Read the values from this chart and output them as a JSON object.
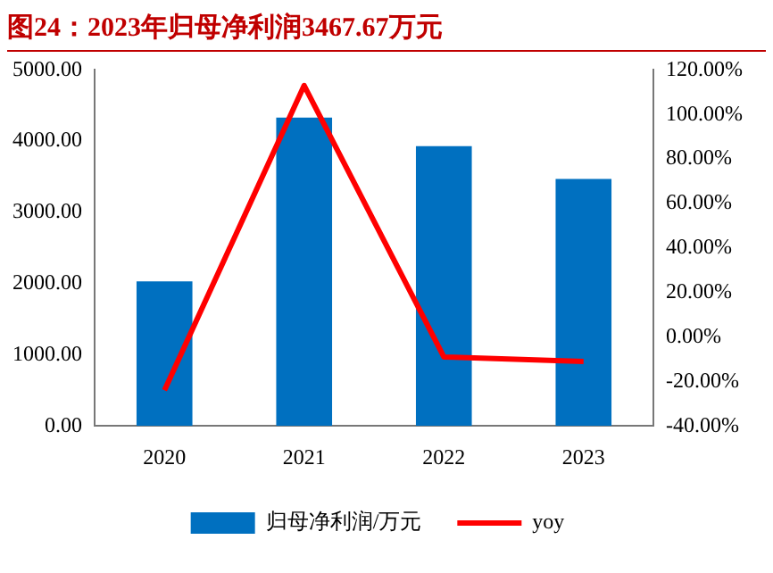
{
  "chart_data": {
    "type": "bar",
    "title": "图24：2023年归母净利润3467.67万元",
    "categories": [
      "2020",
      "2021",
      "2022",
      "2023"
    ],
    "series": [
      {
        "name": "归母净利润/万元",
        "color": "#0070c0",
        "values": [
          2030,
          4330,
          3930,
          3470
        ]
      },
      {
        "name": "yoy",
        "type": "line",
        "axis": "y2",
        "color": "#ff0000",
        "values": [
          -24,
          113,
          -9,
          -11
        ]
      }
    ],
    "ylim": [
      0,
      5000
    ],
    "yticks": [
      {
        "value": 0,
        "label": "0.00"
      },
      {
        "value": 1000,
        "label": "1000.00"
      },
      {
        "value": 2000,
        "label": "2000.00"
      },
      {
        "value": 3000,
        "label": "3000.00"
      },
      {
        "value": 4000,
        "label": "4000.00"
      },
      {
        "value": 5000,
        "label": "5000.00"
      }
    ],
    "y2lim": [
      -40,
      120
    ],
    "y2ticks": [
      {
        "value": -40,
        "label": "-40.00%"
      },
      {
        "value": -20,
        "label": "-20.00%"
      },
      {
        "value": 0,
        "label": "0.00%"
      },
      {
        "value": 20,
        "label": "20.00%"
      },
      {
        "value": 40,
        "label": "40.00%"
      },
      {
        "value": 60,
        "label": "60.00%"
      },
      {
        "value": 80,
        "label": "80.00%"
      },
      {
        "value": 100,
        "label": "100.00%"
      },
      {
        "value": 120,
        "label": "120.00%"
      }
    ],
    "grid": false,
    "legend": "bottom",
    "marker": "none"
  }
}
